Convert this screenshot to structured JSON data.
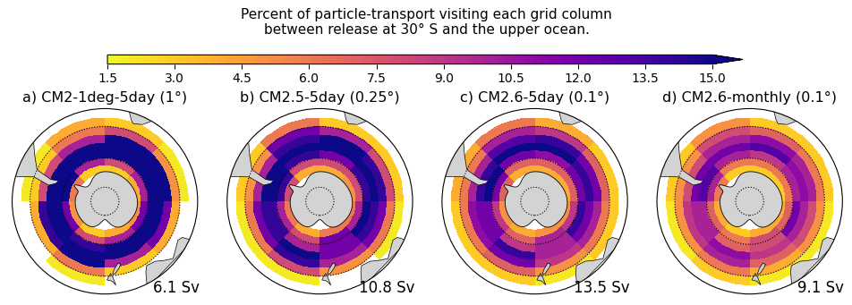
{
  "chart_data": {
    "type": "map",
    "title": "Percent of particle-transport visiting each grid column\nbetween release at 30° S and the upper ocean.",
    "colorbar": {
      "range": [
        1.5,
        15.0
      ],
      "ticks": [
        1.5,
        3.0,
        4.5,
        6.0,
        7.5,
        9.0,
        10.5,
        12.0,
        13.5,
        15.0
      ]
    },
    "lat_lim": [
      -90,
      -30
    ],
    "lat_gridlines": [
      -80,
      -60,
      -40
    ],
    "lat_edges": [
      -35,
      -40,
      -45,
      -50,
      -55,
      -60,
      -65,
      -70
    ],
    "lon_edges": [
      0,
      45,
      90,
      135,
      180,
      225,
      270,
      315,
      360
    ],
    "panels": [
      {
        "title": "a) CM2-1deg-5day (1°)",
        "transport_label": "6.1 Sv",
        "cells": [
          [
            3,
            2,
            1,
            1,
            2,
            1,
            2,
            4
          ],
          [
            8,
            5,
            4,
            3,
            6,
            4,
            3,
            6
          ],
          [
            16,
            16,
            12,
            10,
            16,
            14,
            8,
            10
          ],
          [
            16,
            16,
            16,
            16,
            16,
            16,
            16,
            16
          ],
          [
            16,
            16,
            16,
            16,
            14,
            16,
            16,
            16
          ],
          [
            8,
            10,
            12,
            10,
            8,
            12,
            16,
            10
          ],
          [
            3,
            4,
            5,
            4,
            3,
            5,
            6,
            3
          ]
        ]
      },
      {
        "title": "b) CM2.5-5day (0.25°)",
        "transport_label": "10.8 Sv",
        "cells": [
          [
            3,
            3,
            2,
            1,
            2,
            2,
            3,
            6
          ],
          [
            10,
            8,
            6,
            5,
            8,
            6,
            5,
            12
          ],
          [
            16,
            14,
            12,
            10,
            14,
            12,
            10,
            14
          ],
          [
            16,
            16,
            14,
            12,
            16,
            14,
            16,
            16
          ],
          [
            12,
            14,
            16,
            12,
            10,
            14,
            16,
            14
          ],
          [
            8,
            8,
            10,
            12,
            8,
            10,
            14,
            8
          ],
          [
            4,
            5,
            6,
            6,
            4,
            6,
            8,
            4
          ]
        ]
      },
      {
        "title": "c) CM2.6-5day (0.1°)",
        "transport_label": "13.5 Sv",
        "cells": [
          [
            4,
            3,
            3,
            2,
            3,
            3,
            4,
            6
          ],
          [
            9,
            7,
            6,
            5,
            7,
            6,
            6,
            10
          ],
          [
            14,
            12,
            10,
            9,
            12,
            11,
            10,
            13
          ],
          [
            16,
            14,
            12,
            10,
            14,
            12,
            14,
            15
          ],
          [
            11,
            12,
            14,
            10,
            9,
            12,
            15,
            12
          ],
          [
            7,
            7,
            9,
            10,
            7,
            9,
            12,
            7
          ],
          [
            4,
            4,
            5,
            5,
            4,
            5,
            7,
            4
          ]
        ]
      },
      {
        "title": "d) CM2.6-monthly (0.1°)",
        "transport_label": "9.1 Sv",
        "cells": [
          [
            3,
            3,
            2,
            2,
            3,
            2,
            3,
            5
          ],
          [
            7,
            6,
            5,
            4,
            6,
            5,
            5,
            8
          ],
          [
            11,
            10,
            8,
            7,
            10,
            9,
            8,
            10
          ],
          [
            13,
            11,
            10,
            9,
            11,
            10,
            12,
            12
          ],
          [
            9,
            10,
            12,
            8,
            7,
            10,
            13,
            10
          ],
          [
            6,
            6,
            7,
            8,
            6,
            7,
            10,
            6
          ],
          [
            3,
            3,
            4,
            4,
            3,
            4,
            6,
            3
          ]
        ]
      }
    ]
  }
}
